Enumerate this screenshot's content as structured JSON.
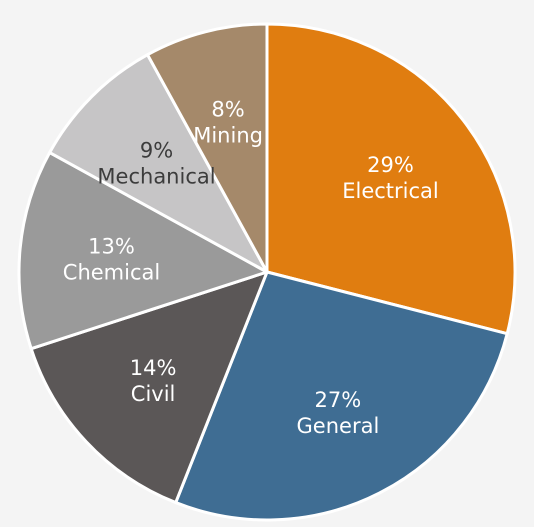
{
  "chart_data": {
    "type": "pie",
    "start_angle_deg": 0,
    "direction": "clockwise",
    "slices": [
      {
        "label": "Electrical",
        "value": 29,
        "value_label": "29%",
        "color": "#e07d10",
        "text_color": "#ffffff"
      },
      {
        "label": "General",
        "value": 27,
        "value_label": "27%",
        "color": "#3f6d93",
        "text_color": "#ffffff"
      },
      {
        "label": "Civil",
        "value": 14,
        "value_label": "14%",
        "color": "#5b5757",
        "text_color": "#ffffff"
      },
      {
        "label": "Chemical",
        "value": 13,
        "value_label": "13%",
        "color": "#9a9a9a",
        "text_color": "#ffffff"
      },
      {
        "label": "Mechanical",
        "value": 9,
        "value_label": "9%",
        "color": "#c6c5c6",
        "text_color": "#3c3c3c"
      },
      {
        "label": "Mining",
        "value": 8,
        "value_label": "8%",
        "color": "#a5896a",
        "text_color": "#ffffff"
      }
    ]
  }
}
